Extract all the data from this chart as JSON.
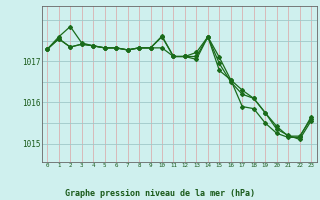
{
  "title": "Graphe pression niveau de la mer (hPa)",
  "background_color": "#cff0ee",
  "vgrid_color": "#d9b0b0",
  "hgrid_color": "#a0c8c8",
  "line_color": "#1a6b1a",
  "label_color": "#1a5a1a",
  "x_labels": [
    "0",
    "1",
    "2",
    "3",
    "4",
    "5",
    "6",
    "7",
    "8",
    "9",
    "10",
    "11",
    "12",
    "13",
    "14",
    "15",
    "16",
    "17",
    "18",
    "19",
    "20",
    "21",
    "22",
    "23"
  ],
  "y_ticks": [
    1015,
    1016,
    1017
  ],
  "ylim": [
    1014.55,
    1018.35
  ],
  "xlim": [
    -0.5,
    23.5
  ],
  "series1": [
    1017.3,
    1017.6,
    1017.85,
    1017.45,
    1017.38,
    1017.33,
    1017.33,
    1017.28,
    1017.33,
    1017.33,
    1017.6,
    1017.12,
    1017.12,
    1017.12,
    1017.6,
    1016.95,
    1016.5,
    1016.2,
    1016.1,
    1015.75,
    1015.35,
    1015.2,
    1015.1,
    1015.55
  ],
  "series2": [
    1017.3,
    1017.55,
    1017.35,
    1017.42,
    1017.38,
    1017.33,
    1017.33,
    1017.28,
    1017.33,
    1017.33,
    1017.62,
    1017.12,
    1017.12,
    1017.22,
    1017.6,
    1017.1,
    1016.55,
    1016.3,
    1016.1,
    1015.75,
    1015.42,
    1015.18,
    1015.18,
    1015.6
  ],
  "series3": [
    1017.3,
    1017.55,
    1017.35,
    1017.42,
    1017.38,
    1017.33,
    1017.33,
    1017.28,
    1017.33,
    1017.33,
    1017.33,
    1017.12,
    1017.12,
    1017.05,
    1017.6,
    1016.78,
    1016.55,
    1015.9,
    1015.85,
    1015.5,
    1015.25,
    1015.15,
    1015.15,
    1015.65
  ]
}
